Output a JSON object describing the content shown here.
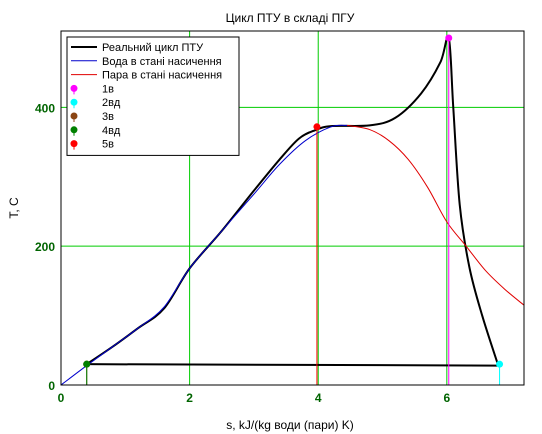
{
  "chart_data": {
    "type": "line",
    "title": "Цикл ПТУ в складі ПГУ",
    "xlabel": "s, kJ/(kg води (пари) K)",
    "ylabel": "T, C",
    "xlim": [
      0,
      7.2
    ],
    "ylim": [
      0,
      510
    ],
    "xticks": [
      0,
      2,
      4,
      6
    ],
    "yticks": [
      0,
      200,
      400
    ],
    "grid": true,
    "grid_color": "#00cc00",
    "legend_position": "top-left",
    "series": [
      {
        "name": "Реальний цикл ПТУ",
        "color": "#000000",
        "kind": "line",
        "points": [
          [
            0.4,
            30
          ],
          [
            0.8,
            55
          ],
          [
            1.2,
            82
          ],
          [
            1.6,
            110
          ],
          [
            2.0,
            168
          ],
          [
            2.5,
            222
          ],
          [
            3.0,
            280
          ],
          [
            3.4,
            325
          ],
          [
            3.7,
            355
          ],
          [
            3.95,
            367
          ],
          [
            4.2,
            373
          ],
          [
            4.8,
            374
          ],
          [
            5.2,
            385
          ],
          [
            5.6,
            420
          ],
          [
            5.9,
            465
          ],
          [
            6.03,
            500
          ],
          [
            6.1,
            400
          ],
          [
            6.2,
            260
          ],
          [
            6.35,
            170
          ],
          [
            6.55,
            100
          ],
          [
            6.8,
            28
          ],
          [
            0.4,
            30
          ]
        ]
      },
      {
        "name": "Вода в стані насичення",
        "color": "#0000cc",
        "kind": "line",
        "points": [
          [
            0,
            0
          ],
          [
            0.4,
            28
          ],
          [
            0.8,
            55
          ],
          [
            1.2,
            82
          ],
          [
            1.6,
            112
          ],
          [
            2.0,
            168
          ],
          [
            2.5,
            222
          ],
          [
            3.0,
            275
          ],
          [
            3.4,
            318
          ],
          [
            3.8,
            352
          ],
          [
            4.2,
            372
          ],
          [
            4.45,
            374
          ]
        ]
      },
      {
        "name": "Пара в стані насичення",
        "color": "#e00000",
        "kind": "line",
        "points": [
          [
            4.45,
            374
          ],
          [
            4.8,
            368
          ],
          [
            5.1,
            352
          ],
          [
            5.4,
            325
          ],
          [
            5.7,
            285
          ],
          [
            6.0,
            235
          ],
          [
            6.3,
            200
          ],
          [
            6.6,
            165
          ],
          [
            6.9,
            138
          ],
          [
            7.2,
            115
          ]
        ]
      },
      {
        "name": "1в",
        "color": "#ff00ff",
        "kind": "marker",
        "stem": true,
        "points": [
          [
            6.03,
            500
          ]
        ]
      },
      {
        "name": "2вд",
        "color": "#00ffff",
        "kind": "marker",
        "stem": true,
        "points": [
          [
            6.82,
            30
          ]
        ]
      },
      {
        "name": "3в",
        "color": "#8b4513",
        "kind": "marker",
        "stem": true,
        "points": [
          [
            0.4,
            30
          ]
        ]
      },
      {
        "name": "4вд",
        "color": "#008000",
        "kind": "marker",
        "stem": true,
        "points": [
          [
            0.4,
            30
          ]
        ]
      },
      {
        "name": "5в",
        "color": "#ff0000",
        "kind": "marker",
        "stem": true,
        "points": [
          [
            3.98,
            372
          ]
        ]
      }
    ]
  }
}
